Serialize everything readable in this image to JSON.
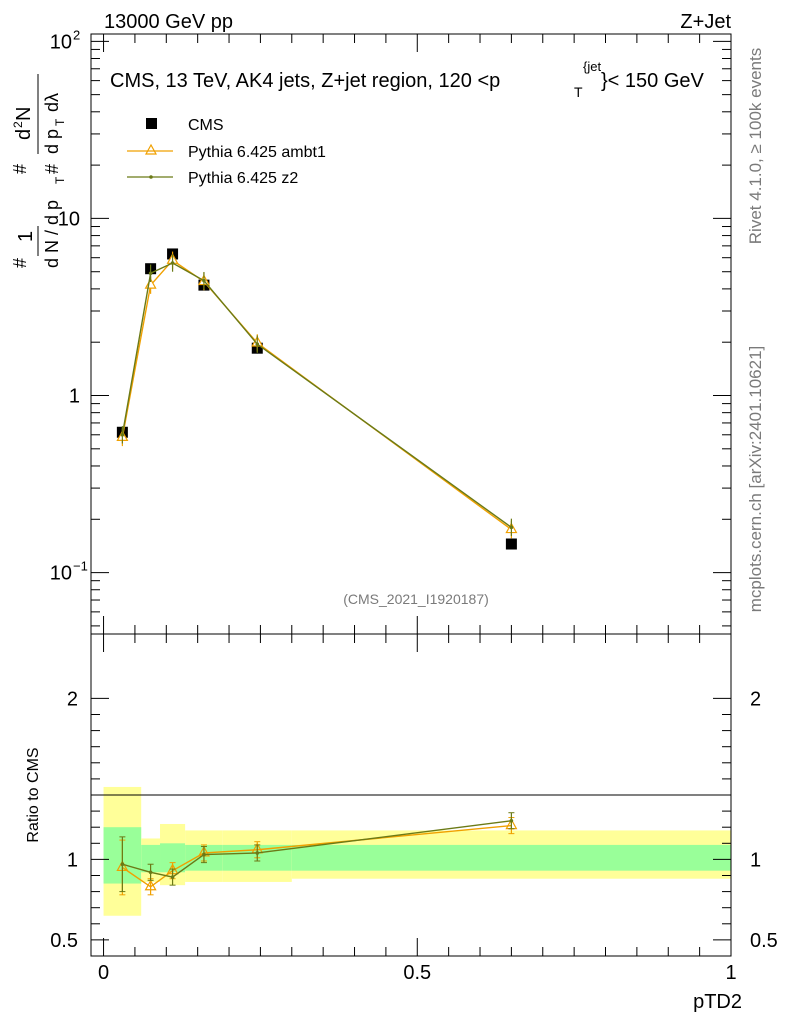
{
  "header": {
    "left": "13000 GeV pp",
    "right": "Z+Jet"
  },
  "side_text": {
    "rivet": "Rivet 4.1.0, ≥ 100k events",
    "mcplots": "mcplots.cern.ch [arXiv:2401.10621]"
  },
  "watermark": "(CMS_2021_I1920187)",
  "chart_data": [
    {
      "type": "scatter",
      "title": "CMS, 13 TeV, AK4 jets, Z+jet region, 120 <p_T^{jet}< 150 GeV",
      "ylabel": "1/dN/dpT · d²N/dpT dλ",
      "yscale": "log",
      "ylim": [
        0.045,
        110
      ],
      "xlim": [
        -0.02,
        1.0
      ],
      "y_ticks": [
        {
          "v": 100,
          "m": "10",
          "e": "2"
        },
        {
          "v": 10,
          "m": "10",
          "e": ""
        },
        {
          "v": 1,
          "m": "1",
          "e": ""
        },
        {
          "v": 0.1,
          "m": "10",
          "e": "−1"
        }
      ],
      "x": [
        0.03,
        0.075,
        0.11,
        0.16,
        0.245,
        0.65
      ],
      "series": [
        {
          "name": "CMS",
          "color": "#000000",
          "marker": "square",
          "values": [
            0.62,
            5.2,
            6.3,
            4.2,
            1.85,
            0.145
          ]
        },
        {
          "name": "Pythia 6.425 ambt1",
          "color": "#f0a000",
          "marker": "triangle",
          "values": [
            0.58,
            4.2,
            5.8,
            4.4,
            1.98,
            0.175
          ]
        },
        {
          "name": "Pythia 6.425 z2",
          "color": "#6b7a16",
          "marker": "dot",
          "values": [
            0.6,
            4.9,
            5.6,
            4.45,
            1.95,
            0.18
          ]
        }
      ]
    },
    {
      "type": "line",
      "ylabel": "Ratio to CMS",
      "xlabel": "pTD2",
      "ylim": [
        0.4,
        2.4
      ],
      "xlim": [
        -0.02,
        1.0
      ],
      "x_ticks": [
        "0",
        "0.5",
        "1"
      ],
      "y_ticks": [
        "0.5",
        "1",
        "2"
      ],
      "bin_edges": [
        0.0,
        0.06,
        0.09,
        0.13,
        0.19,
        0.3,
        1.0
      ],
      "bands": {
        "inner_color": "#99ff99",
        "outer_color": "#ffff99",
        "inner_low": [
          0.85,
          0.92,
          0.92,
          0.93,
          0.93,
          0.93
        ],
        "inner_high": [
          1.2,
          1.09,
          1.1,
          1.09,
          1.09,
          1.09
        ],
        "outer_low": [
          0.65,
          0.86,
          0.84,
          0.86,
          0.86,
          0.88
        ],
        "outer_high": [
          1.45,
          1.13,
          1.22,
          1.18,
          1.18,
          1.18
        ]
      },
      "series": [
        {
          "name": "Pythia 6.425 ambt1",
          "color": "#f0a000",
          "values": [
            0.95,
            0.83,
            0.93,
            1.04,
            1.06,
            1.21
          ]
        },
        {
          "name": "Pythia 6.425 z2",
          "color": "#6b7a16",
          "values": [
            0.97,
            0.92,
            0.89,
            1.03,
            1.04,
            1.24
          ]
        }
      ]
    }
  ]
}
